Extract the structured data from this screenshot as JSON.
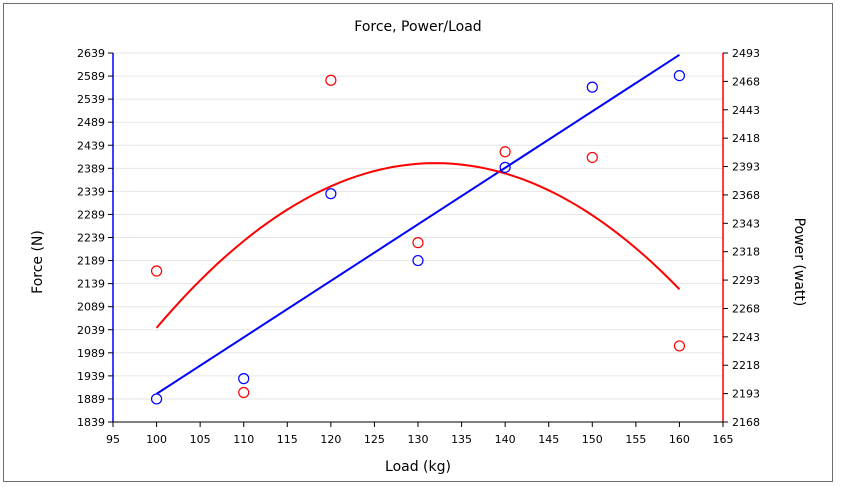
{
  "chart_data": {
    "type": "scatter",
    "title": "Force, Power/Load",
    "xlabel": "Load (kg)",
    "ylabel_left": "Force (N)",
    "ylabel_right": "Power (watt)",
    "xlim": [
      95,
      165
    ],
    "ylim_left": [
      1839,
      2639
    ],
    "ylim_right": [
      2168,
      2493
    ],
    "x_ticks": [
      95,
      100,
      105,
      110,
      115,
      120,
      125,
      130,
      135,
      140,
      145,
      150,
      155,
      160,
      165
    ],
    "y_left_ticks": [
      1839,
      1889,
      1939,
      1989,
      2039,
      2089,
      2139,
      2189,
      2239,
      2289,
      2339,
      2389,
      2439,
      2489,
      2539,
      2589,
      2639
    ],
    "y_right_ticks": [
      2168,
      2193,
      2218,
      2243,
      2268,
      2293,
      2318,
      2343,
      2368,
      2393,
      2418,
      2443,
      2468,
      2493
    ],
    "grid": "horizontal",
    "colors": {
      "force": "#0000ff",
      "power": "#ff0000",
      "left_axis": "#0000ff",
      "right_axis": "#ff0000",
      "grid": "#e6e6e6"
    },
    "series": [
      {
        "name": "Force",
        "axis": "left",
        "x": [
          100,
          110,
          120,
          130,
          140,
          150,
          160
        ],
        "y": [
          1889,
          1933,
          2334,
          2189,
          2391,
          2565,
          2590
        ],
        "fit": {
          "kind": "linear",
          "x": [
            100,
            160
          ],
          "y": [
            1900,
            2635
          ]
        }
      },
      {
        "name": "Power",
        "axis": "right",
        "x": [
          100,
          110,
          120,
          130,
          140,
          150,
          160
        ],
        "y": [
          2301,
          2194,
          2469,
          2326,
          2406,
          2401,
          2235
        ],
        "fit": {
          "kind": "quadratic",
          "x": [
            100,
            160
          ],
          "vertex_x": 132,
          "vertex_y": 2396,
          "y_at_100": 2257,
          "y_at_160": 2277
        }
      }
    ]
  }
}
